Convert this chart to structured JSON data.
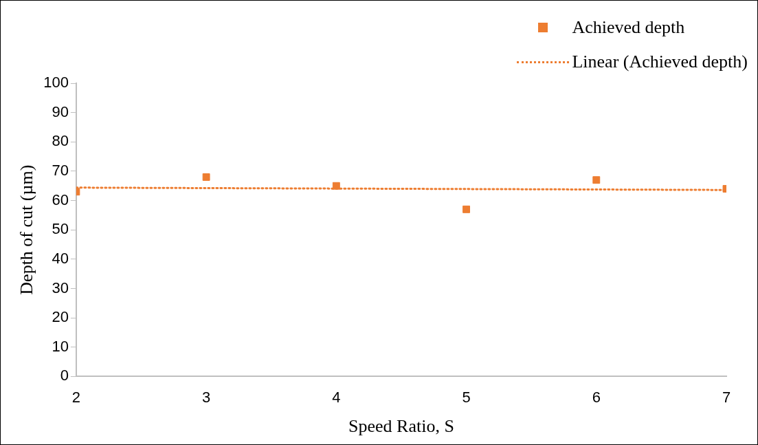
{
  "chart_data": {
    "type": "scatter",
    "xlabel": "Speed Ratio, S",
    "ylabel": "Depth of cut (µm)",
    "x": [
      2,
      3,
      4,
      5,
      6,
      7
    ],
    "series": [
      {
        "name": "Achieved depth",
        "color": "#ed7d31",
        "marker": "square",
        "values": [
          63,
          68,
          65,
          57,
          67,
          64
        ]
      },
      {
        "name": "Linear (Achieved depth)",
        "type": "line",
        "color": "#ed7d31",
        "marker": "none",
        "line_style": "dotted",
        "x": [
          2,
          7
        ],
        "values": [
          64.4,
          63.6
        ]
      }
    ],
    "xlim": [
      2,
      7
    ],
    "xticks": [
      2,
      3,
      4,
      5,
      6,
      7
    ],
    "ylim": [
      0,
      100
    ],
    "yticks": [
      0,
      10,
      20,
      30,
      40,
      50,
      60,
      70,
      80,
      90,
      100
    ],
    "grid": false,
    "legend": "top right"
  }
}
